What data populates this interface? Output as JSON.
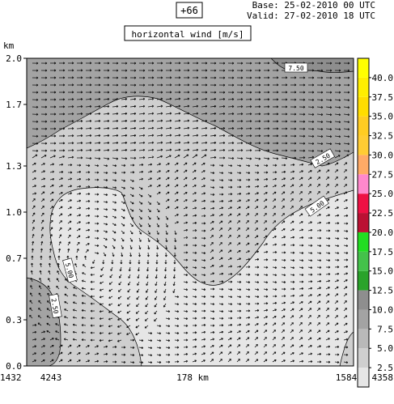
{
  "header": {
    "lead_label": "+66",
    "base_line": "Base: 25-02-2010  00 UTC",
    "valid_line": "Valid: 27-02-2010  18 UTC",
    "field_title": "horizontal wind [m/s]"
  },
  "colors": {
    "band_0_2_5": "#e6e6e6",
    "band_2_5_5": "#cfcfcf",
    "band_5_7_5": "#b9b9b9",
    "band_7_5_10": "#a3a3a3",
    "band_10_12_5": "#8e8e8e",
    "band_12_5_15": "#2aa32a",
    "band_15_17_5": "#44c24a",
    "band_17_5_20": "#22dd22",
    "band_20_22_5": "#bb1133",
    "band_22_5_25": "#ee1144",
    "band_25_27_5": "#ff88cc",
    "band_27_5_30": "#ffaa66",
    "band_30_32_5": "#ffcc33",
    "band_32_5_35": "#ffcc22",
    "band_35_37_5": "#ffdd00",
    "band_37_5_40": "#ffee00",
    "band_40_plus": "#ffff00",
    "contour_line": "#000000"
  },
  "chart_data": {
    "type": "heatmap",
    "title": "horizontal wind [m/s]",
    "ylabel": "km",
    "ylim": [
      0.0,
      2.0
    ],
    "y_ticks": [
      "0.0",
      "0.3",
      "0.7",
      "1.0",
      "1.3",
      "1.7",
      "2.0"
    ],
    "x_tick_labels": [
      "1432",
      "4243",
      "178 km",
      "1584",
      "4358"
    ],
    "colorbar": {
      "levels": [
        "2.5",
        "5.0",
        "7.5",
        "10.0",
        "12.5",
        "15.0",
        "17.5",
        "20.0",
        "22.5",
        "25.0",
        "27.5",
        "30.0",
        "32.5",
        "35.0",
        "37.5",
        "40.0"
      ],
      "level_values": [
        2.5,
        5.0,
        7.5,
        10.0,
        12.5,
        15.0,
        17.5,
        20.0,
        22.5,
        25.0,
        27.5,
        30.0,
        32.5,
        35.0,
        37.5,
        40.0
      ]
    },
    "contour_labels": [
      "7.50",
      "2.50",
      "5.00",
      "5.00",
      "2.50"
    ]
  }
}
